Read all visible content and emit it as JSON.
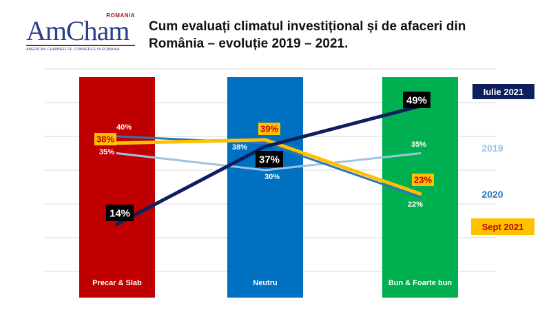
{
  "logo": {
    "country": "ROMANIA",
    "name": "AmCham",
    "subtitle": "AMERICAN CHAMBER OF COMMERCE IN ROMANIA"
  },
  "title": "Cum evaluați climatul investițional și de afaceri din România – evoluție 2019 – 2021.",
  "colors": {
    "precar": "#c00000",
    "neutru": "#0070c0",
    "bun": "#00b050",
    "s2019": "#9dc3e6",
    "s2020": "#2e75b6",
    "iulie2021": "#0d1f5c",
    "sept2021": "#ffc000",
    "sept2021_label": "#c00000"
  },
  "chart_data": {
    "type": "line",
    "categories": [
      "Precar & Slab",
      "Neutru",
      "Bun & Foarte bun"
    ],
    "ylim": [
      0,
      60
    ],
    "grid": true,
    "series": [
      {
        "name": "2019",
        "values": [
          35,
          30,
          35
        ],
        "labels": [
          "35%",
          "30%",
          "35%"
        ],
        "color": "#9dc3e6"
      },
      {
        "name": "2020",
        "values": [
          40,
          38,
          22
        ],
        "labels": [
          "40%",
          "38%",
          "22%"
        ],
        "color": "#2e75b6"
      },
      {
        "name": "Iulie 2021",
        "values": [
          14,
          37,
          49
        ],
        "labels": [
          "14%",
          "37%",
          "49%"
        ],
        "color": "#0d1f5c"
      },
      {
        "name": "Sept  2021",
        "values": [
          38,
          39,
          23
        ],
        "labels": [
          "38%",
          "39%",
          "23%"
        ],
        "color": "#ffc000"
      }
    ]
  }
}
